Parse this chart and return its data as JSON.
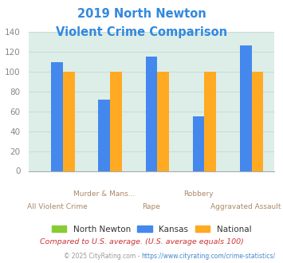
{
  "title_line1": "2019 North Newton",
  "title_line2": "Violent Crime Comparison",
  "categories_row1": [
    "",
    "Murder & Mans...",
    "",
    "Robbery",
    ""
  ],
  "categories_row2": [
    "All Violent Crime",
    "",
    "Rape",
    "",
    "Aggravated Assault"
  ],
  "series": {
    "North Newton": [
      0,
      0,
      0,
      0,
      0
    ],
    "Kansas": [
      109,
      72,
      115,
      55,
      126
    ],
    "National": [
      100,
      100,
      100,
      100,
      100
    ]
  },
  "colors": {
    "North Newton": "#88cc33",
    "Kansas": "#4488ee",
    "National": "#ffaa22"
  },
  "ylim": [
    0,
    140
  ],
  "yticks": [
    0,
    20,
    40,
    60,
    80,
    100,
    120,
    140
  ],
  "background_color": "#ddeee8",
  "series_names": [
    "North Newton",
    "Kansas",
    "National"
  ],
  "footnote1": "Compared to U.S. average. (U.S. average equals 100)",
  "footnote2_prefix": "© 2025 CityRating.com - ",
  "footnote2_link": "https://www.cityrating.com/crime-statistics/",
  "title_color": "#3388dd",
  "footnote1_color": "#cc3333",
  "footnote2_color": "#999999",
  "footnote2_link_color": "#4488cc",
  "xlabel_color_row1": "#aa8866",
  "xlabel_color_row2": "#aa8866",
  "grid_color": "#c8ddd8",
  "ytick_color": "#888888"
}
